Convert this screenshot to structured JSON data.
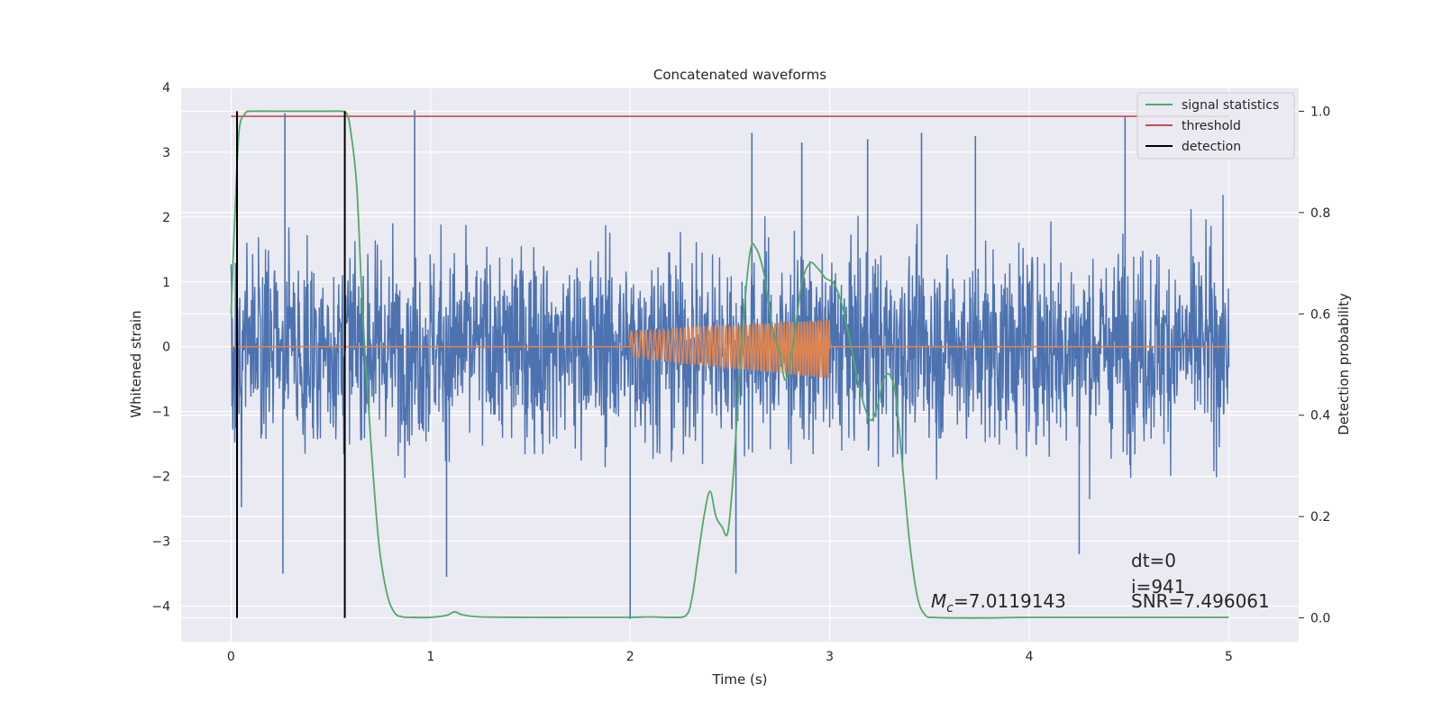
{
  "chart_data": {
    "type": "line",
    "title": "Concatenated waveforms",
    "xlabel": "Time (s)",
    "ylabel": "Whitened strain",
    "ylabel_right": "Detection probability",
    "xlim": [
      -0.25,
      5.35
    ],
    "ylim": [
      -4.55,
      4.0
    ],
    "ylim_right": [
      -0.047,
      1.047
    ],
    "xticks": [
      0,
      1,
      2,
      3,
      4,
      5
    ],
    "xtick_labels": [
      "0",
      "1",
      "2",
      "3",
      "4",
      "5"
    ],
    "yticks": [
      4,
      3,
      2,
      1,
      0,
      -1,
      -2,
      -3,
      -4
    ],
    "ytick_labels": [
      "4",
      "3",
      "2",
      "1",
      "0",
      "−1",
      "−2",
      "−3",
      "−4"
    ],
    "yticks_right": [
      1.0,
      0.8,
      0.6,
      0.4,
      0.2,
      0.0
    ],
    "ytick_right_labels": [
      "1.0",
      "0.8",
      "0.6",
      "0.4",
      "0.2",
      "0.0"
    ],
    "grid": true,
    "legend_position": "top-right",
    "colors": {
      "strain": "#4c72b0",
      "template": "#dd8452",
      "signal_statistics": "#55a868",
      "threshold": "#c44e52",
      "detection": "#000000",
      "background": "#eaeaf2",
      "grid": "#ffffff"
    },
    "legend": [
      {
        "label": "signal statistics",
        "color": "#55a868"
      },
      {
        "label": "threshold",
        "color": "#c44e52"
      },
      {
        "label": "detection",
        "color": "#000000"
      }
    ],
    "strain_noise": {
      "t_start": 0,
      "t_end": 5,
      "std": 1.0
    },
    "strain_spikes": [
      {
        "t": 0.27,
        "y": 3.6
      },
      {
        "t": 0.92,
        "y": 3.65
      },
      {
        "t": 2.61,
        "y": 3.3
      },
      {
        "t": 2.86,
        "y": 3.15
      },
      {
        "t": 3.19,
        "y": 3.2
      },
      {
        "t": 3.46,
        "y": 3.3
      },
      {
        "t": 3.73,
        "y": 3.25
      },
      {
        "t": 4.48,
        "y": 3.55
      },
      {
        "t": 0.26,
        "y": -3.5
      },
      {
        "t": 1.08,
        "y": -3.55
      },
      {
        "t": 2.0,
        "y": -4.2
      },
      {
        "t": 2.53,
        "y": -3.5
      },
      {
        "t": 4.25,
        "y": -3.2
      }
    ],
    "template": {
      "t_start": 2.0,
      "t_end": 3.0,
      "amp_start": 0.2,
      "amp_end": 0.45,
      "f_start": 40,
      "f_end": 75
    },
    "signal_statistics": {
      "x": [
        0.0,
        0.02,
        0.04,
        0.07,
        0.1,
        0.2,
        0.35,
        0.5,
        0.55,
        0.58,
        0.6,
        0.63,
        0.66,
        0.7,
        0.74,
        0.78,
        0.82,
        0.86,
        0.9,
        1.0,
        1.08,
        1.12,
        1.16,
        1.25,
        1.5,
        1.8,
        2.0,
        2.1,
        2.2,
        2.28,
        2.31,
        2.34,
        2.37,
        2.4,
        2.43,
        2.46,
        2.49,
        2.52,
        2.56,
        2.6,
        2.63,
        2.67,
        2.71,
        2.75,
        2.78,
        2.82,
        2.86,
        2.9,
        2.94,
        2.98,
        3.02,
        3.06,
        3.1,
        3.14,
        3.18,
        3.21,
        3.24,
        3.27,
        3.3,
        3.33,
        3.36,
        3.4,
        3.44,
        3.48,
        3.52,
        3.6,
        3.8,
        4.0,
        4.5,
        5.0
      ],
      "y": [
        0.6,
        0.8,
        0.96,
        0.995,
        1.0,
        1.0,
        1.0,
        1.0,
        1.0,
        0.995,
        0.96,
        0.85,
        0.6,
        0.35,
        0.15,
        0.05,
        0.01,
        0.002,
        0.001,
        0.001,
        0.005,
        0.012,
        0.006,
        0.002,
        0.001,
        0.001,
        0.001,
        0.002,
        0.001,
        0.005,
        0.04,
        0.12,
        0.2,
        0.25,
        0.2,
        0.18,
        0.17,
        0.3,
        0.55,
        0.72,
        0.73,
        0.68,
        0.58,
        0.52,
        0.47,
        0.55,
        0.66,
        0.7,
        0.69,
        0.67,
        0.66,
        0.62,
        0.55,
        0.47,
        0.41,
        0.39,
        0.42,
        0.47,
        0.48,
        0.44,
        0.32,
        0.15,
        0.04,
        0.005,
        0.001,
        0.0,
        0.0,
        0.001,
        0.001,
        0.001
      ]
    },
    "threshold": {
      "x": [
        0.0,
        5.0
      ],
      "y": [
        0.99,
        0.99
      ]
    },
    "detections": [
      0.03,
      0.57
    ],
    "annotations": {
      "mc": "=7.0119143",
      "dt": "dt=0",
      "i": "i=941",
      "snr": "SNR=7.496061"
    }
  }
}
